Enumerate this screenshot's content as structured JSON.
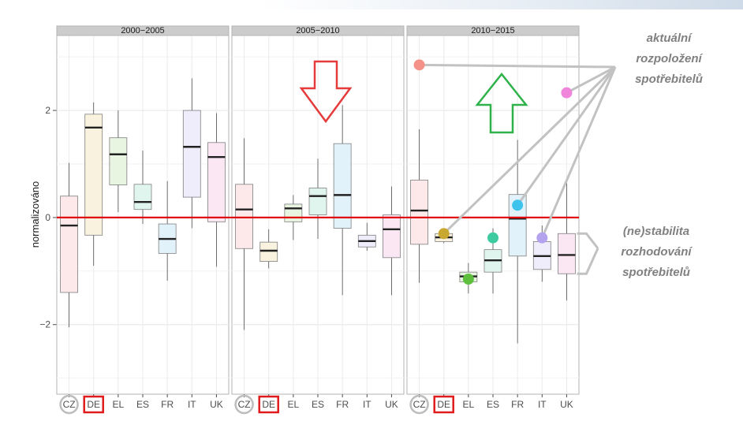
{
  "chart_data": {
    "type": "boxplot",
    "ylabel": "normalizováno",
    "yticks": [
      -2,
      0,
      2
    ],
    "ylim": [
      -3.3,
      3.4
    ],
    "categories": [
      "CZ",
      "DE",
      "EL",
      "ES",
      "FR",
      "IT",
      "UK"
    ],
    "highlight_circle": [
      "CZ"
    ],
    "highlight_box": [
      "DE"
    ],
    "reference_line": 0,
    "reference_color": "#e00000",
    "panels": [
      {
        "title": "2000-2005",
        "boxes": [
          {
            "cat": "CZ",
            "min": -2.05,
            "q1": -1.4,
            "median": -0.15,
            "q3": 0.4,
            "max": 1.02,
            "fill": "#fde8ea"
          },
          {
            "cat": "DE",
            "min": -0.9,
            "q1": -0.33,
            "median": 1.68,
            "q3": 1.93,
            "max": 2.15,
            "fill": "#f8f2de"
          },
          {
            "cat": "EL",
            "min": 0.1,
            "q1": 0.61,
            "median": 1.18,
            "q3": 1.49,
            "max": 2.0,
            "fill": "#e8f5e0"
          },
          {
            "cat": "ES",
            "min": -0.12,
            "q1": 0.15,
            "median": 0.29,
            "q3": 0.62,
            "max": 1.25,
            "fill": "#e0f5ed"
          },
          {
            "cat": "FR",
            "min": -1.18,
            "q1": -0.67,
            "median": -0.4,
            "q3": -0.12,
            "max": 0.68,
            "fill": "#e2f2fb"
          },
          {
            "cat": "IT",
            "min": -0.2,
            "q1": 0.38,
            "median": 1.32,
            "q3": 2.0,
            "max": 2.6,
            "fill": "#efedfb"
          },
          {
            "cat": "UK",
            "min": -0.92,
            "q1": -0.08,
            "median": 1.13,
            "q3": 1.4,
            "max": 1.95,
            "fill": "#fbe7f4"
          }
        ]
      },
      {
        "title": "2005-2010",
        "boxes": [
          {
            "cat": "CZ",
            "min": -2.1,
            "q1": -0.58,
            "median": 0.15,
            "q3": 0.62,
            "max": 1.48,
            "fill": "#fde8ea"
          },
          {
            "cat": "DE",
            "min": -0.95,
            "q1": -0.82,
            "median": -0.62,
            "q3": -0.46,
            "max": -0.22,
            "fill": "#f8f2de"
          },
          {
            "cat": "EL",
            "min": -0.42,
            "q1": -0.08,
            "median": 0.17,
            "q3": 0.25,
            "max": 0.42,
            "fill": "#e8f5e0"
          },
          {
            "cat": "ES",
            "min": -0.4,
            "q1": 0.05,
            "median": 0.4,
            "q3": 0.55,
            "max": 1.1,
            "fill": "#e0f5ed"
          },
          {
            "cat": "FR",
            "min": -1.45,
            "q1": -0.2,
            "median": 0.42,
            "q3": 1.38,
            "max": 2.1,
            "fill": "#e2f2fb"
          },
          {
            "cat": "IT",
            "min": -0.62,
            "q1": -0.55,
            "median": -0.44,
            "q3": -0.33,
            "max": -0.1,
            "fill": "#efedfb"
          },
          {
            "cat": "UK",
            "min": -1.45,
            "q1": -0.75,
            "median": -0.22,
            "q3": 0.05,
            "max": 0.58,
            "fill": "#fbe7f4"
          }
        ]
      },
      {
        "title": "2010-2015",
        "boxes": [
          {
            "cat": "CZ",
            "min": -1.22,
            "q1": -0.5,
            "median": 0.13,
            "q3": 0.7,
            "max": 1.65,
            "fill": "#fde8ea"
          },
          {
            "cat": "DE",
            "min": -0.48,
            "q1": -0.45,
            "median": -0.37,
            "q3": -0.3,
            "max": -0.22,
            "fill": "#f8f2de"
          },
          {
            "cat": "EL",
            "min": -1.42,
            "q1": -1.2,
            "median": -1.1,
            "q3": -1.02,
            "max": -0.85,
            "fill": "#e8f5e0"
          },
          {
            "cat": "ES",
            "min": -1.42,
            "q1": -1.02,
            "median": -0.8,
            "q3": -0.6,
            "max": -0.2,
            "fill": "#e0f5ed"
          },
          {
            "cat": "FR",
            "min": -2.35,
            "q1": -0.72,
            "median": -0.02,
            "q3": 0.43,
            "max": 1.45,
            "fill": "#e2f2fb"
          },
          {
            "cat": "IT",
            "min": -1.2,
            "q1": -0.97,
            "median": -0.72,
            "q3": -0.45,
            "max": -0.15,
            "fill": "#efedfb"
          },
          {
            "cat": "UK",
            "min": -1.55,
            "q1": -1.05,
            "median": -0.7,
            "q3": -0.3,
            "max": 0.65,
            "fill": "#fbe7f4"
          }
        ],
        "points": [
          {
            "cat": "CZ",
            "y": 2.85,
            "color": "#f4928a"
          },
          {
            "cat": "DE",
            "y": -0.3,
            "color": "#c9a831"
          },
          {
            "cat": "EL",
            "y": -1.15,
            "color": "#5dbf3d"
          },
          {
            "cat": "ES",
            "y": -0.38,
            "color": "#3fcba0"
          },
          {
            "cat": "FR",
            "y": 0.23,
            "color": "#3ec3ec"
          },
          {
            "cat": "IT",
            "y": -0.38,
            "color": "#b3a3ee"
          },
          {
            "cat": "UK",
            "y": 2.33,
            "color": "#ef86dc"
          }
        ]
      }
    ],
    "annotations": {
      "top_lines": [
        "aktuální",
        "rozpoložení",
        "spotřebitelů"
      ],
      "bottom_lines": [
        "(ne)stabilita",
        "rozhodování",
        "spotřebitelů"
      ]
    }
  }
}
